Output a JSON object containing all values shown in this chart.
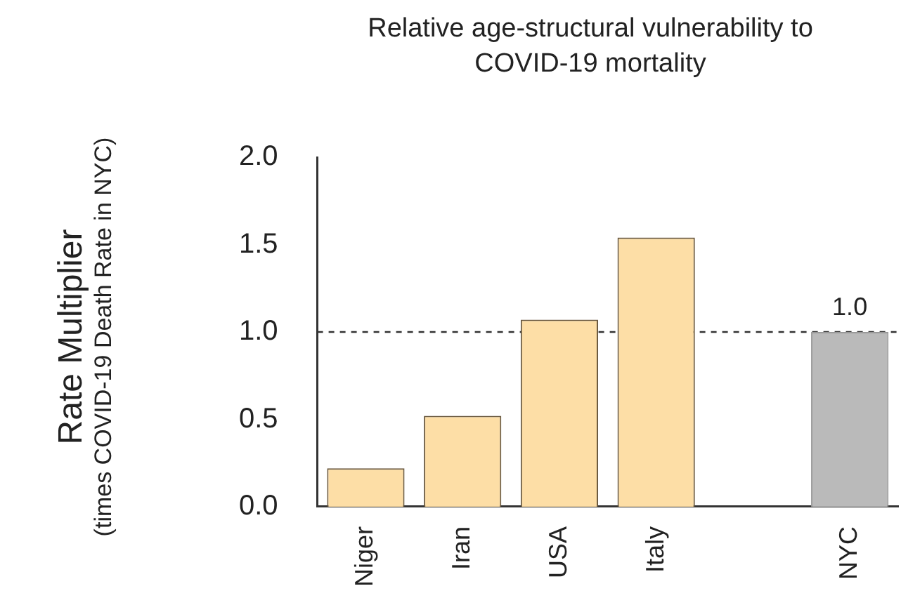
{
  "chart_data": {
    "type": "bar",
    "title": "Relative age-structural vulnerability to COVID-19 mortality",
    "ylabel": "Rate Multiplier (times COVID-19 Death Rate in NYC)",
    "categories": [
      "Niger",
      "Iran",
      "USA",
      "Italy",
      null,
      "NYC"
    ],
    "values": [
      0.22,
      0.52,
      1.07,
      1.54,
      null,
      1.0
    ],
    "colors": [
      "#fddea6",
      "#fddea6",
      "#fddea6",
      "#fddea6",
      "#fddea6",
      "#bababa"
    ],
    "value_labels": [
      null,
      null,
      null,
      null,
      null,
      "1.0"
    ],
    "ref_lines": [
      {
        "axis": "y",
        "value": 1.0,
        "line_style": "dashed",
        "color": "#333333"
      }
    ],
    "ylim": [
      0,
      2
    ],
    "yticks": [
      {
        "value": 0,
        "label": "0.0"
      },
      {
        "value": 0.5,
        "label": "0.5"
      },
      {
        "value": 1,
        "label": "1.0"
      },
      {
        "value": 1.5,
        "label": "1.5"
      },
      {
        "value": 2,
        "label": "2.0"
      }
    ],
    "grid": false,
    "legend": false
  }
}
